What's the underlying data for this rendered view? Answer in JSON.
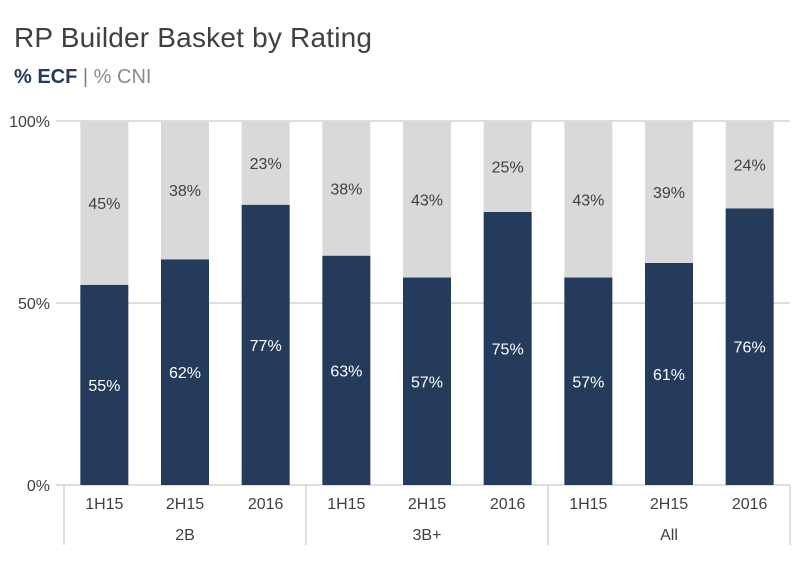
{
  "title": "RP Builder Basket by Rating",
  "subtitle": {
    "ecf": "% ECF",
    "separator": "|",
    "cni": "% CNI"
  },
  "colors": {
    "ecf": "#243b5c",
    "cni": "#d9d9d9",
    "axis": "#bfbfbf",
    "text": "#404040"
  },
  "chart_data": {
    "type": "bar",
    "stacked": true,
    "title": "RP Builder Basket by Rating",
    "categories": [
      "1H15",
      "2H15",
      "2016",
      "1H15",
      "2H15",
      "2016",
      "1H15",
      "2H15",
      "2016"
    ],
    "groups": [
      {
        "label": "2B",
        "count": 3
      },
      {
        "label": "3B+",
        "count": 3
      },
      {
        "label": "All",
        "count": 3
      }
    ],
    "series": [
      {
        "name": "% ECF",
        "values": [
          55,
          62,
          77,
          63,
          57,
          75,
          57,
          61,
          76
        ],
        "labels": [
          "55%",
          "62%",
          "77%",
          "63%",
          "57%",
          "75%",
          "57%",
          "61%",
          "76%"
        ]
      },
      {
        "name": "% CNI",
        "values": [
          45,
          38,
          23,
          38,
          43,
          25,
          43,
          39,
          24
        ],
        "labels": [
          "45%",
          "38%",
          "23%",
          "38%",
          "43%",
          "25%",
          "43%",
          "39%",
          "24%"
        ]
      }
    ],
    "yticks": [
      "0%",
      "50%",
      "100%"
    ],
    "ylim": [
      0,
      100
    ],
    "grid": true,
    "legend": "none"
  }
}
